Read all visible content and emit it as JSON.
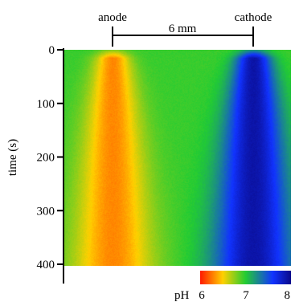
{
  "chart_data": {
    "type": "heatmap",
    "title": "",
    "ylabel": "time (s)",
    "ylim": [
      0,
      400
    ],
    "yticks": [
      "0",
      "100",
      "200",
      "300",
      "400"
    ],
    "annotations": {
      "anode": "anode",
      "cathode": "cathode",
      "distance": "6 mm"
    },
    "colorbar": {
      "label": "pH",
      "ticks": [
        "6",
        "7",
        "8"
      ],
      "range": [
        6,
        8
      ],
      "colors": [
        "#ff1a00",
        "#ffd000",
        "#22cc33",
        "#1133ff",
        "#0a0a8a"
      ]
    },
    "features": [
      {
        "name": "anode",
        "peak_pH": 6.3
      },
      {
        "name": "cathode",
        "peak_pH": 7.9
      }
    ],
    "background_pH": 6.95
  }
}
